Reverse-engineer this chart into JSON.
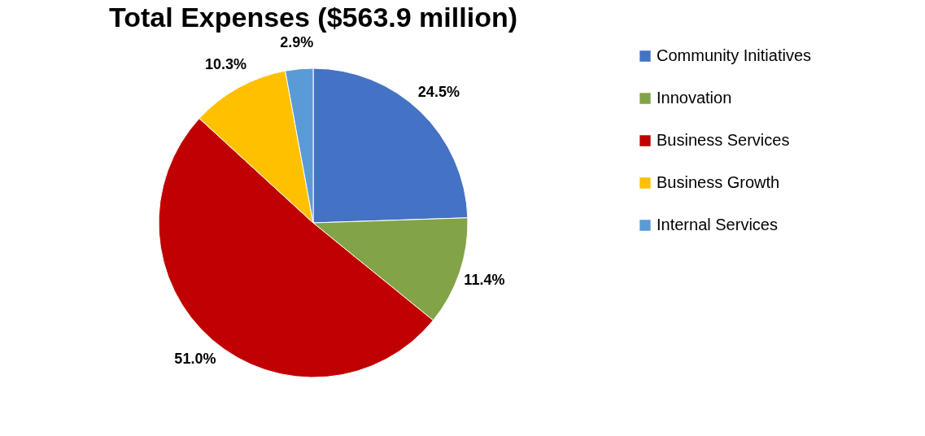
{
  "chart_data": {
    "type": "pie",
    "title": "Total Expenses ($563.9 million)",
    "categories": [
      "Community Initiatives",
      "Innovation",
      "Business Services",
      "Business Growth",
      "Internal Services"
    ],
    "values": [
      24.5,
      11.4,
      51.0,
      10.3,
      2.9
    ],
    "value_labels": [
      "24.5%",
      "11.4%",
      "51.0%",
      "10.3%",
      "2.9%"
    ],
    "colors": [
      "#4472c4",
      "#82a346",
      "#c00000",
      "#ffc000",
      "#5b9bd5"
    ],
    "legend": "right"
  }
}
